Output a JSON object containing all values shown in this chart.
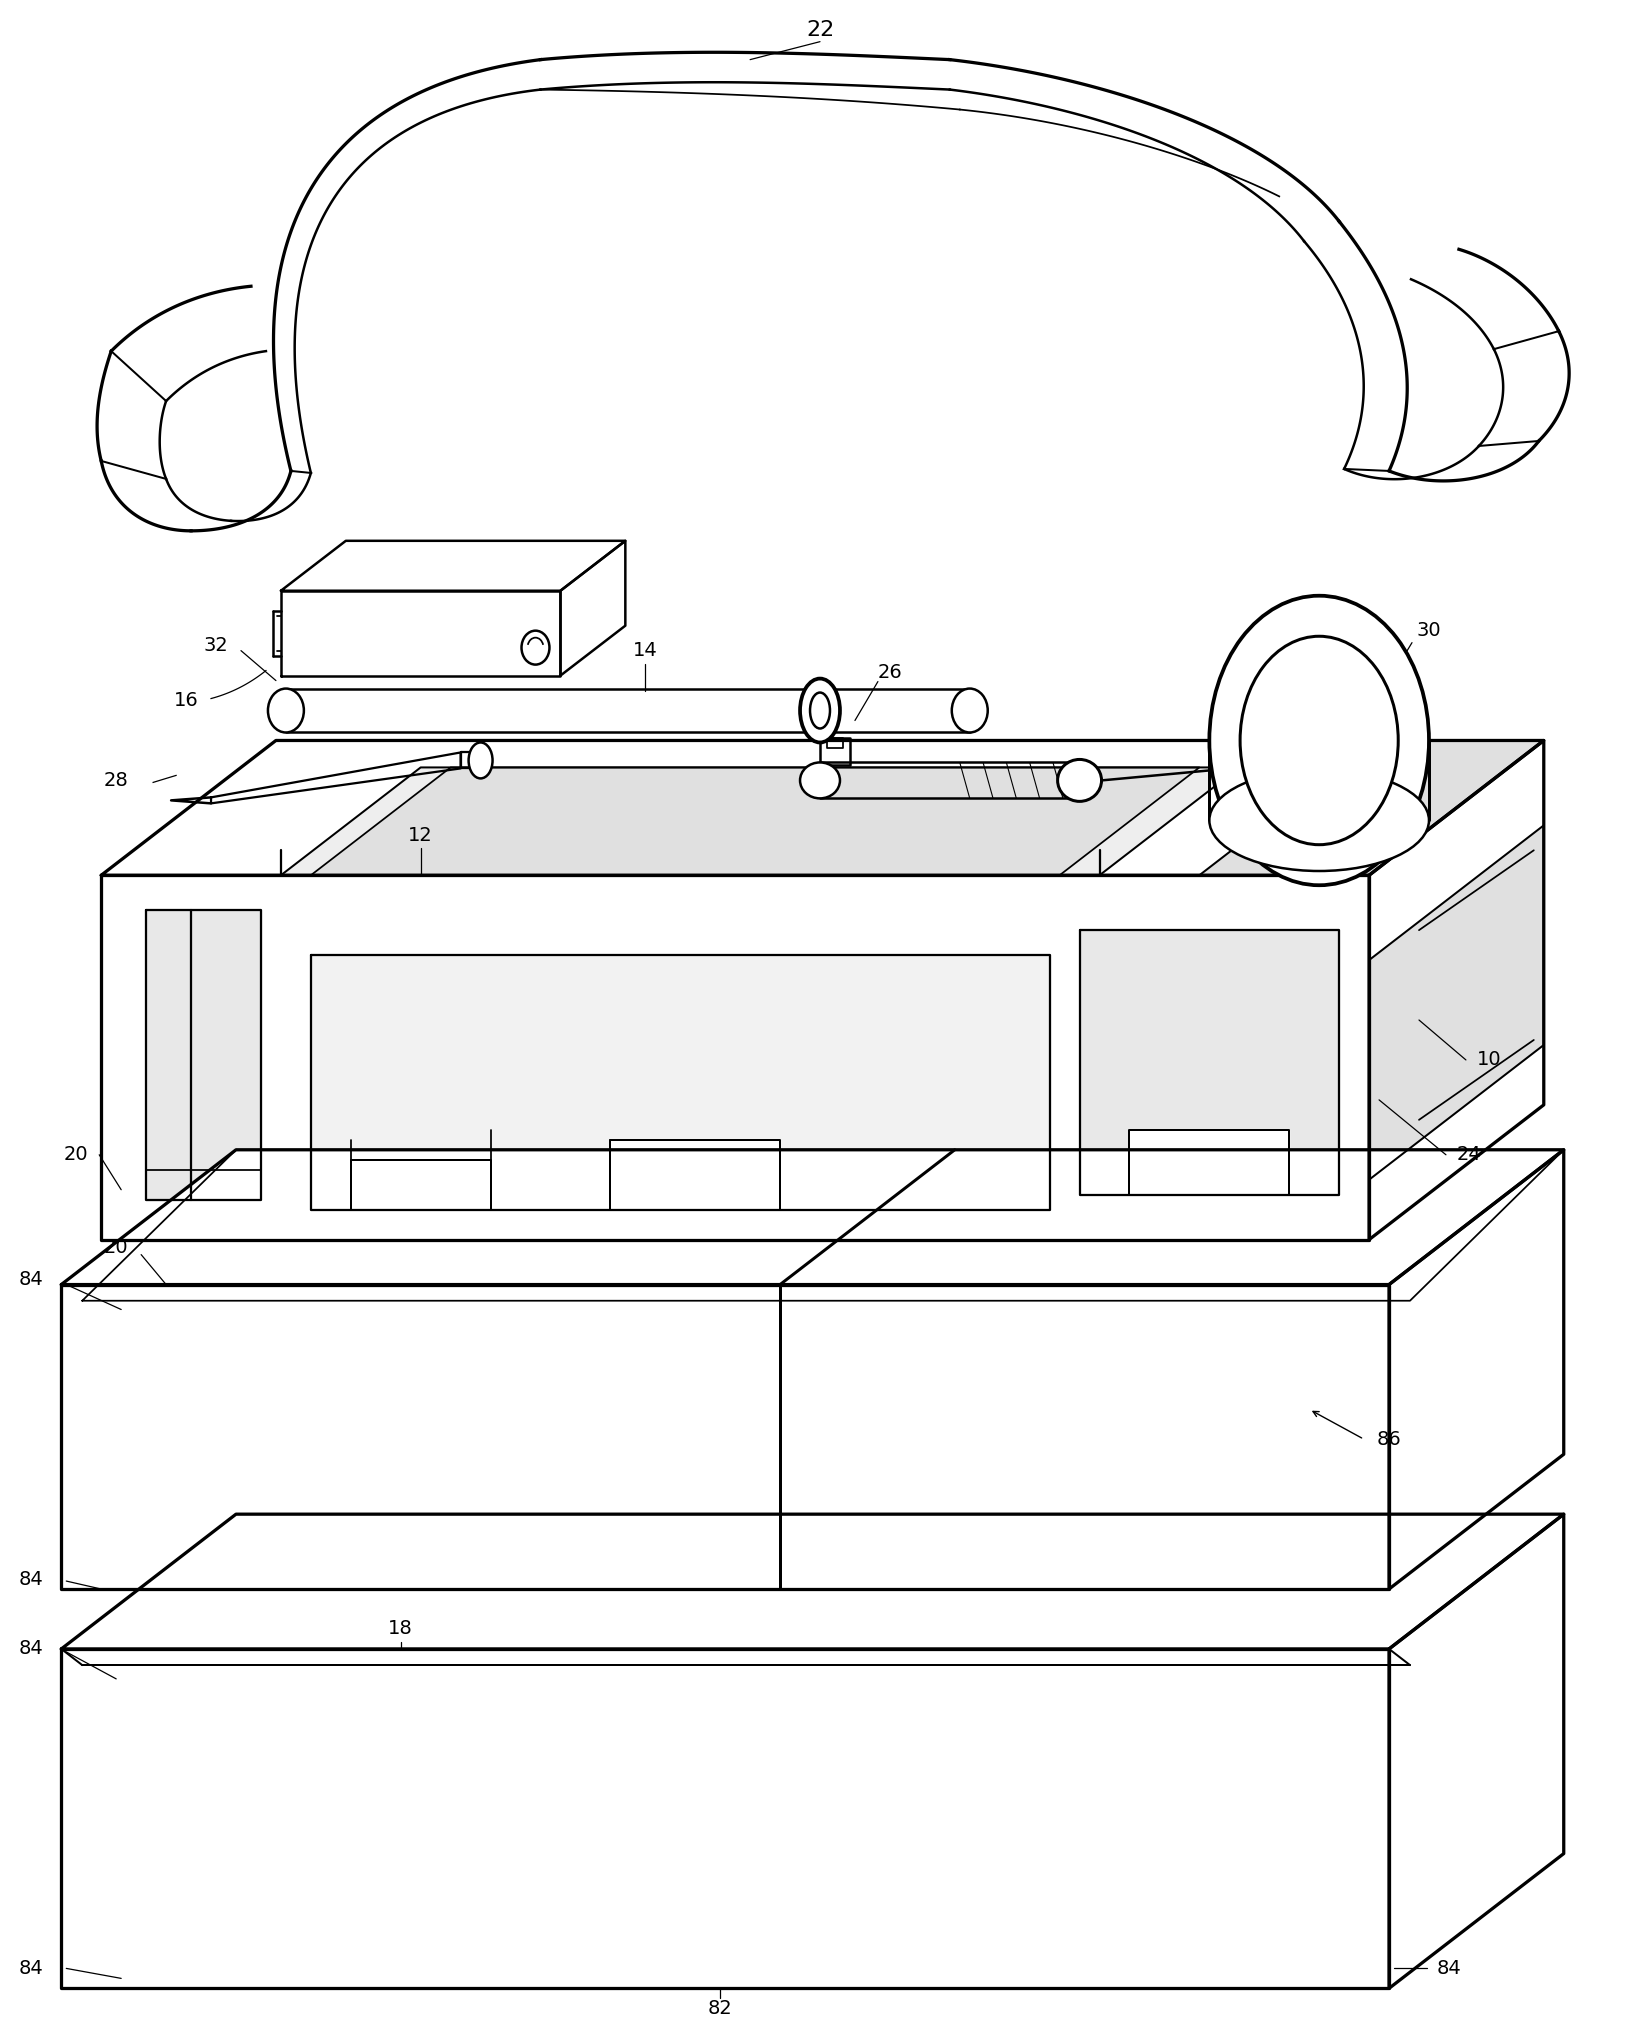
{
  "background_color": "#ffffff",
  "line_color": "#000000",
  "lw": 1.8,
  "fig_width": 16.46,
  "fig_height": 20.44
}
